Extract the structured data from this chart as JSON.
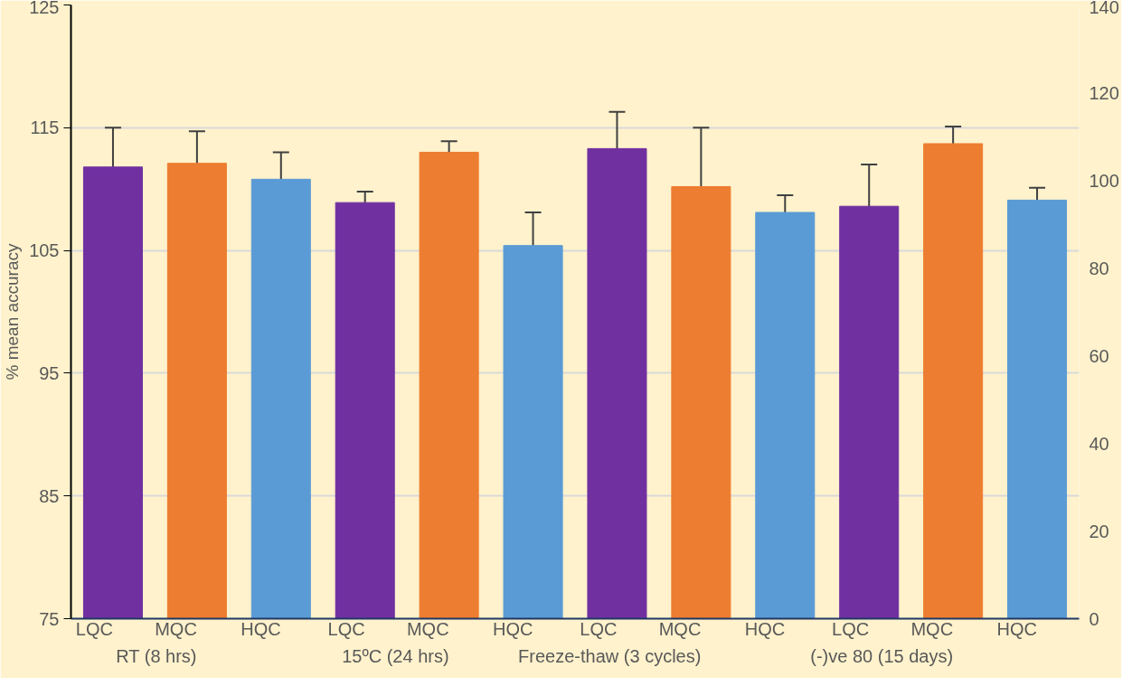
{
  "chart_data": {
    "type": "bar",
    "ylabel": "% mean accuracy",
    "categories": [
      "LQC",
      "MQC",
      "HQC",
      "LQC",
      "MQC",
      "HQC",
      "LQC",
      "MQC",
      "HQC",
      "LQC",
      "MQC",
      "HQC"
    ],
    "annotations": [
      "RT (8 hrs)",
      "15ºC (24 hrs)",
      "Freeze-thaw (3 cycles)",
      "(-)ve 80 (15 days)"
    ],
    "values": [
      111.8,
      112.1,
      110.8,
      108.9,
      113.0,
      105.4,
      113.3,
      110.2,
      108.1,
      108.6,
      113.7,
      109.1
    ],
    "errors": [
      3.2,
      2.6,
      2.2,
      0.9,
      0.9,
      2.7,
      3.0,
      4.8,
      1.4,
      3.4,
      1.4,
      1.0
    ],
    "colors": [
      "#7030a0",
      "#ed7d31",
      "#5b9bd5",
      "#7030a0",
      "#ed7d31",
      "#5b9bd5",
      "#7030a0",
      "#ed7d31",
      "#5b9bd5",
      "#7030a0",
      "#ed7d31",
      "#5b9bd5"
    ],
    "ylim": [
      75,
      125
    ],
    "yticks": [
      75,
      85,
      95,
      105,
      115,
      125
    ],
    "y2lim": [
      0,
      140
    ],
    "y2ticks": [
      0,
      20,
      40,
      60,
      80,
      100,
      120,
      140
    ],
    "grid": "y"
  }
}
